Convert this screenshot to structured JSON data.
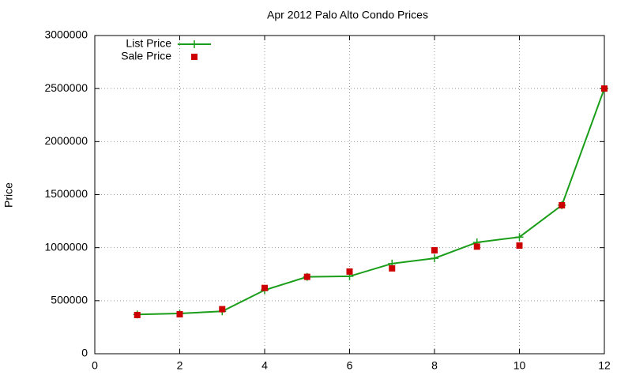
{
  "chart_data": {
    "type": "line",
    "title": "Apr 2012 Palo Alto Condo Prices",
    "y_label": "Price",
    "x": [
      1,
      2,
      3,
      4,
      5,
      6,
      7,
      8,
      9,
      10,
      11,
      12
    ],
    "series": [
      {
        "name": "List Price",
        "color": "#1a9e1a",
        "marker": "plus",
        "line": true,
        "values": [
          370000,
          380000,
          400000,
          600000,
          725000,
          730000,
          850000,
          900000,
          1050000,
          1100000,
          1400000,
          2500000
        ]
      },
      {
        "name": "Sale Price",
        "color": "#cc0000",
        "marker": "square",
        "line": false,
        "values": [
          365000,
          372000,
          420000,
          620000,
          725000,
          775000,
          805000,
          975000,
          1010000,
          1020000,
          1400000,
          2500000
        ]
      }
    ],
    "xlim": [
      0,
      12
    ],
    "xticks": [
      0,
      2,
      4,
      6,
      8,
      10,
      12
    ],
    "ylim": [
      0,
      3000000
    ],
    "yticks": [
      0,
      500000,
      1000000,
      1500000,
      2000000,
      2500000,
      3000000
    ],
    "grid": true,
    "legend": "top-left"
  }
}
